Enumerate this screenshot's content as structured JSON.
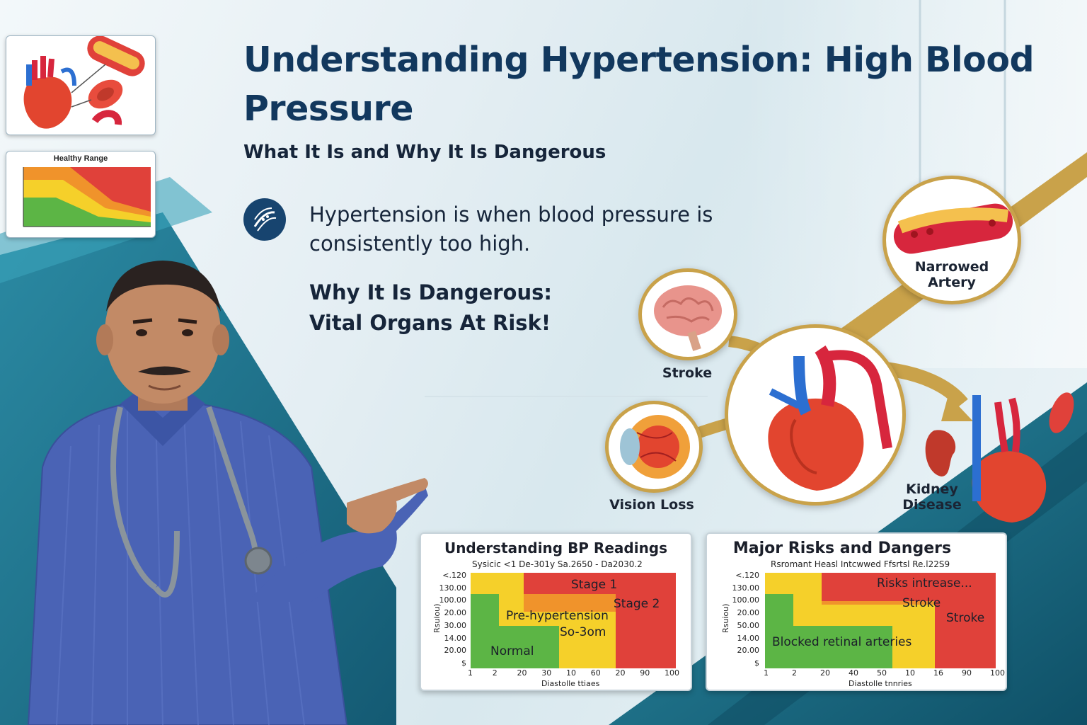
{
  "header": {
    "title": "Understanding Hypertension: High Blood Pressure",
    "subtitle": "What It Is and Why It Is Dangerous"
  },
  "definition": {
    "icon": "artery-icon",
    "text": "Hypertension is when blood pressure is consistently too high."
  },
  "danger": {
    "line1": "Why It Is Dangerous:",
    "line2": "Vital Organs At Risk!"
  },
  "thumbnails": {
    "range_chart_title": "Healthy Range"
  },
  "organs": {
    "center": "heart",
    "risks": [
      {
        "label": "Narrowed Artery",
        "icon": "artery-icon"
      },
      {
        "label": "Stroke",
        "icon": "brain-icon"
      },
      {
        "label": "Vision Loss",
        "icon": "eye-icon"
      },
      {
        "label": "Kidney Disease",
        "icon": "kidney-icon"
      }
    ]
  },
  "bp_readings_panel": {
    "title": "Understanding BP Readings",
    "header_row": "Sysicic <1    De-301y  Sa.2650 -  Da2030.2",
    "y_ticks": [
      "<.120",
      "130.00",
      "100.00",
      "20.00",
      "30.00",
      "14.00",
      "20.00",
      "$"
    ],
    "x_ticks": [
      "1",
      "2",
      "20",
      "30",
      "10",
      "60",
      "20",
      "90",
      "100"
    ],
    "x_title": "Diastolle ttiaes",
    "y_title": "Rsuiou)",
    "zones": [
      "Stage 1",
      "Stage 2",
      "Pre-hypertension",
      "So-3om",
      "Normal"
    ]
  },
  "risks_panel": {
    "title": "Major Risks and Dangers",
    "header_row": "Rsromant    Heasl Intcwwed    Ffsrtsl    Re.l22S9",
    "y_ticks": [
      "<.120",
      "130.00",
      "100.00",
      "20.00",
      "50.00",
      "14.00",
      "20.00",
      "$"
    ],
    "x_ticks": [
      "1",
      "2",
      "20",
      "40",
      "50",
      "10",
      "16",
      "90",
      "100"
    ],
    "x_title": "Diastolle tnnries",
    "y_title": "Rsuiou)",
    "zones": [
      "Risks intrease...",
      "Stroke",
      "Stroke",
      "Blocked retinal arteries"
    ]
  },
  "colors": {
    "title": "#12385e",
    "gold": "#c9a24a",
    "teal": "#1a6e85",
    "zone_red": "#e0413a",
    "zone_orange": "#f0932b",
    "zone_yellow": "#f5d02a",
    "zone_green": "#5cb545"
  }
}
